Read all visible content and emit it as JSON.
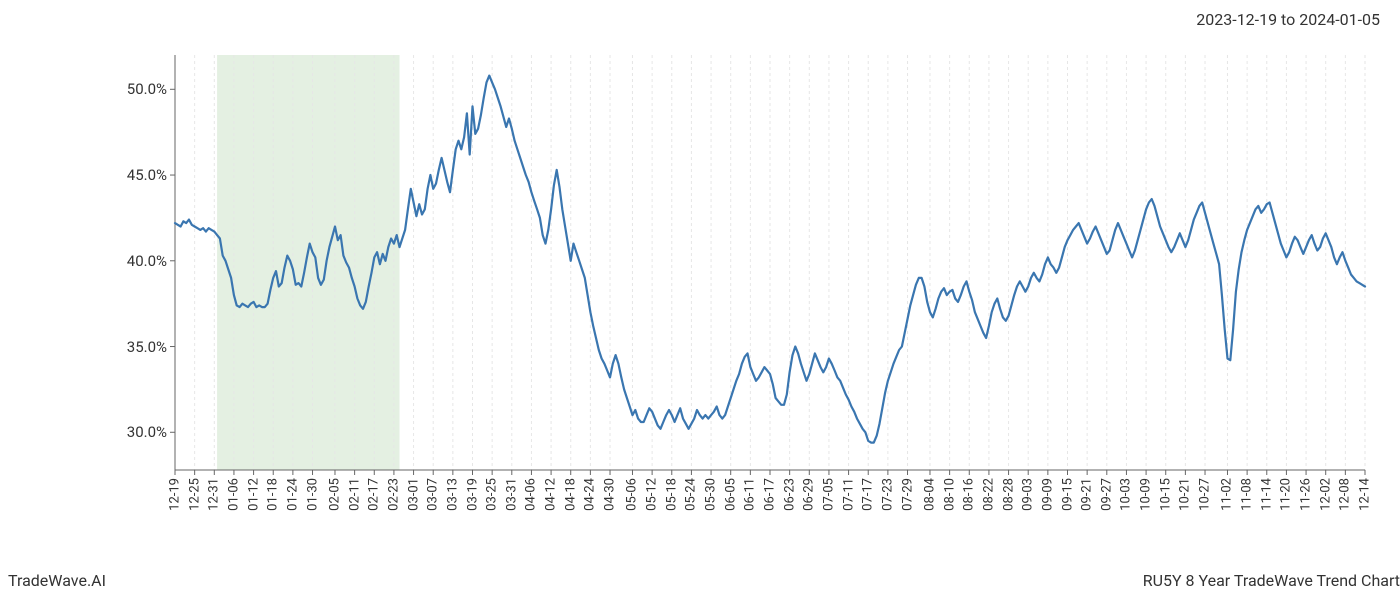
{
  "header": {
    "date_range": "2023-12-19 to 2024-01-05"
  },
  "footer": {
    "left": "TradeWave.AI",
    "right": "RU5Y 8 Year TradeWave Trend Chart"
  },
  "chart": {
    "type": "line",
    "background_color": "#ffffff",
    "line_color": "#3a76b0",
    "line_width": 2.2,
    "grid_color": "#e6e6e6",
    "grid_dash": "3 3",
    "axis_color": "#666666",
    "highlight": {
      "fill": "#d9e9d5",
      "opacity": 0.7,
      "x_start": 15,
      "x_end": 80
    },
    "y_axis": {
      "min": 27.8,
      "max": 52.0,
      "ticks": [
        30.0,
        35.0,
        40.0,
        45.0,
        50.0
      ],
      "tick_labels": [
        "30.0%",
        "35.0%",
        "40.0%",
        "45.0%",
        "50.0%"
      ],
      "label_fontsize": 15
    },
    "x_axis": {
      "tick_labels": [
        "12-19",
        "12-25",
        "12-31",
        "01-06",
        "01-12",
        "01-18",
        "01-24",
        "01-30",
        "02-05",
        "02-11",
        "02-17",
        "02-23",
        "03-01",
        "03-07",
        "03-13",
        "03-19",
        "03-25",
        "03-31",
        "04-06",
        "04-12",
        "04-18",
        "04-24",
        "04-30",
        "05-06",
        "05-12",
        "05-18",
        "05-24",
        "05-30",
        "06-05",
        "06-11",
        "06-17",
        "06-23",
        "06-29",
        "07-05",
        "07-11",
        "07-17",
        "07-23",
        "07-29",
        "08-04",
        "08-10",
        "08-16",
        "08-22",
        "08-28",
        "09-03",
        "09-09",
        "09-15",
        "09-21",
        "09-27",
        "10-03",
        "10-09",
        "10-15",
        "10-21",
        "10-27",
        "11-02",
        "11-08",
        "11-14",
        "11-20",
        "11-26",
        "12-02",
        "12-08",
        "12-14"
      ],
      "label_fontsize": 13
    },
    "series": [
      42.2,
      42.1,
      42.0,
      42.3,
      42.2,
      42.4,
      42.1,
      42.0,
      41.9,
      41.8,
      41.9,
      41.7,
      41.9,
      41.8,
      41.7,
      41.5,
      41.3,
      40.3,
      40.0,
      39.5,
      39.0,
      38.0,
      37.4,
      37.3,
      37.5,
      37.4,
      37.3,
      37.5,
      37.6,
      37.3,
      37.4,
      37.3,
      37.3,
      37.5,
      38.3,
      39.0,
      39.4,
      38.5,
      38.7,
      39.6,
      40.3,
      40.0,
      39.5,
      38.6,
      38.7,
      38.5,
      39.3,
      40.2,
      41.0,
      40.5,
      40.2,
      39.0,
      38.6,
      38.9,
      40.0,
      40.8,
      41.4,
      42.0,
      41.2,
      41.5,
      40.3,
      39.9,
      39.6,
      39.0,
      38.5,
      37.8,
      37.4,
      37.2,
      37.6,
      38.5,
      39.3,
      40.2,
      40.5,
      39.8,
      40.4,
      40.0,
      40.8,
      41.3,
      41.0,
      41.5,
      40.8,
      41.3,
      41.8,
      43.0,
      44.2,
      43.4,
      42.6,
      43.3,
      42.7,
      43.0,
      44.2,
      45.0,
      44.2,
      44.5,
      45.3,
      46.0,
      45.3,
      44.6,
      44.0,
      45.3,
      46.5,
      47.0,
      46.5,
      47.2,
      48.6,
      46.2,
      49.0,
      47.4,
      47.7,
      48.5,
      49.5,
      50.4,
      50.8,
      50.4,
      50.0,
      49.5,
      49.0,
      48.4,
      47.8,
      48.3,
      47.7,
      47.0,
      46.5,
      46.0,
      45.5,
      45.0,
      44.6,
      44.0,
      43.5,
      43.0,
      42.5,
      41.5,
      41.0,
      41.8,
      43.0,
      44.4,
      45.3,
      44.3,
      43.0,
      42.0,
      41.0,
      40.0,
      41.0,
      40.5,
      40.0,
      39.5,
      39.0,
      38.0,
      37.0,
      36.2,
      35.5,
      34.8,
      34.3,
      34.0,
      33.6,
      33.2,
      34.0,
      34.5,
      34.0,
      33.2,
      32.5,
      32.0,
      31.5,
      31.0,
      31.3,
      30.8,
      30.6,
      30.6,
      31.0,
      31.4,
      31.2,
      30.8,
      30.4,
      30.2,
      30.6,
      31.0,
      31.3,
      31.0,
      30.6,
      31.0,
      31.4,
      30.8,
      30.5,
      30.2,
      30.5,
      30.8,
      31.3,
      31.0,
      30.8,
      31.0,
      30.8,
      31.0,
      31.2,
      31.5,
      31.0,
      30.8,
      31.0,
      31.5,
      32.0,
      32.5,
      33.0,
      33.4,
      34.0,
      34.4,
      34.6,
      33.8,
      33.4,
      33.0,
      33.2,
      33.5,
      33.8,
      33.6,
      33.4,
      32.8,
      32.0,
      31.8,
      31.6,
      31.6,
      32.2,
      33.5,
      34.5,
      35.0,
      34.6,
      34.0,
      33.5,
      33.0,
      33.4,
      34.0,
      34.6,
      34.2,
      33.8,
      33.5,
      33.8,
      34.3,
      34.0,
      33.6,
      33.2,
      33.0,
      32.6,
      32.2,
      31.9,
      31.5,
      31.2,
      30.8,
      30.5,
      30.2,
      30.0,
      29.5,
      29.4,
      29.4,
      29.8,
      30.5,
      31.4,
      32.3,
      33.0,
      33.5,
      34.0,
      34.4,
      34.8,
      35.0,
      35.8,
      36.6,
      37.4,
      38.0,
      38.6,
      39.0,
      39.0,
      38.5,
      37.6,
      37.0,
      36.7,
      37.2,
      37.8,
      38.2,
      38.4,
      38.0,
      38.2,
      38.3,
      37.8,
      37.6,
      38.0,
      38.5,
      38.8,
      38.2,
      37.7,
      37.0,
      36.6,
      36.2,
      35.8,
      35.5,
      36.2,
      37.0,
      37.5,
      37.8,
      37.2,
      36.7,
      36.5,
      36.8,
      37.4,
      38.0,
      38.5,
      38.8,
      38.5,
      38.2,
      38.5,
      39.0,
      39.3,
      39.0,
      38.8,
      39.2,
      39.8,
      40.2,
      39.8,
      39.6,
      39.3,
      39.6,
      40.2,
      40.8,
      41.2,
      41.5,
      41.8,
      42.0,
      42.2,
      41.8,
      41.4,
      41.0,
      41.3,
      41.7,
      42.0,
      41.6,
      41.2,
      40.8,
      40.4,
      40.6,
      41.2,
      41.8,
      42.2,
      41.8,
      41.4,
      41.0,
      40.6,
      40.2,
      40.6,
      41.2,
      41.8,
      42.4,
      43.0,
      43.4,
      43.6,
      43.2,
      42.6,
      42.0,
      41.6,
      41.2,
      40.8,
      40.5,
      40.8,
      41.2,
      41.6,
      41.2,
      40.8,
      41.2,
      41.8,
      42.4,
      42.8,
      43.2,
      43.4,
      42.8,
      42.2,
      41.6,
      41.0,
      40.4,
      39.8,
      38.0,
      36.0,
      34.3,
      34.2,
      36.0,
      38.2,
      39.5,
      40.5,
      41.2,
      41.8,
      42.2,
      42.6,
      43.0,
      43.2,
      42.8,
      43.0,
      43.3,
      43.4,
      42.8,
      42.2,
      41.6,
      41.0,
      40.6,
      40.2,
      40.5,
      41.0,
      41.4,
      41.2,
      40.8,
      40.4,
      40.8,
      41.2,
      41.5,
      41.0,
      40.6,
      40.8,
      41.3,
      41.6,
      41.2,
      40.8,
      40.2,
      39.8,
      40.2,
      40.5,
      40.0,
      39.6,
      39.2,
      39.0,
      38.8,
      38.7,
      38.6,
      38.5
    ]
  }
}
